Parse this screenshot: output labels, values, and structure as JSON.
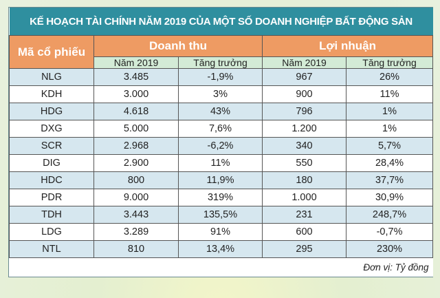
{
  "chart_data": {
    "type": "table",
    "title": "KẾ HOẠCH TÀI CHÍNH NĂM 2019 CỦA MỘT SỐ DOANH NGHIỆP BẤT ĐỘNG SẢN",
    "header": {
      "ticker": "Mã cổ phiếu",
      "revenue": "Doanh thu",
      "profit": "Lợi nhuận",
      "year": "Năm 2019",
      "growth": "Tăng trưởng"
    },
    "rows": [
      [
        "NLG",
        "3.485",
        "-1,9%",
        "967",
        "26%"
      ],
      [
        "KDH",
        "3.000",
        "3%",
        "900",
        "11%"
      ],
      [
        "HDG",
        "4.618",
        "43%",
        "796",
        "1%"
      ],
      [
        "DXG",
        "5.000",
        "7,6%",
        "1.200",
        "1%"
      ],
      [
        "SCR",
        "2.968",
        "-6,2%",
        "340",
        "5,7%"
      ],
      [
        "DIG",
        "2.900",
        "11%",
        "550",
        "28,4%"
      ],
      [
        "HDC",
        "800",
        "11,9%",
        "180",
        "37,7%"
      ],
      [
        "PDR",
        "9.000",
        "319%",
        "1.000",
        "30,9%"
      ],
      [
        "TDH",
        "3.443",
        "135,5%",
        "231",
        "248,7%"
      ],
      [
        "LDG",
        "3.289",
        "91%",
        "600",
        "-0,7%"
      ],
      [
        "NTL",
        "810",
        "13,4%",
        "295",
        "230%"
      ]
    ],
    "unit_note": "Đơn vị: Tỷ đồng",
    "colors": {
      "title_bg": "#2f8f9f",
      "header_bg": "#ee9b63",
      "subheader_bg": "#d3ebd6",
      "stripe": "#d6e7ef"
    }
  }
}
